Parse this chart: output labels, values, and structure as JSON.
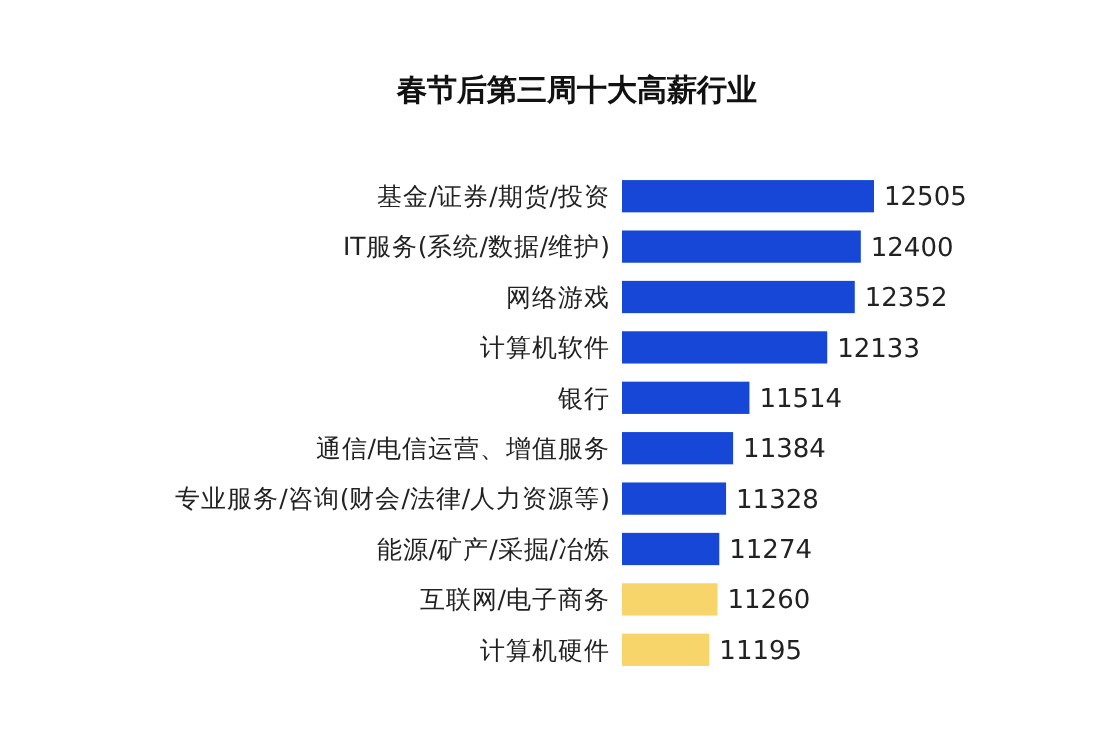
{
  "chart_data": {
    "type": "bar",
    "orientation": "horizontal",
    "title": "春节后第三周十大高薪行业",
    "categories": [
      "基金/证券/期货/投资",
      "IT服务(系统/数据/维护)",
      "网络游戏",
      "计算机软件",
      "银行",
      "通信/电信运营、增值服务",
      "专业服务/咨询(财会/法律/人力资源等)",
      "能源/矿产/采掘/冶炼",
      "互联网/电子商务",
      "计算机硬件"
    ],
    "values": [
      12505,
      12400,
      12352,
      12133,
      11514,
      11384,
      11328,
      11274,
      11260,
      11195
    ],
    "colors": [
      "#1747d6",
      "#1747d6",
      "#1747d6",
      "#1747d6",
      "#1747d6",
      "#1747d6",
      "#1747d6",
      "#1747d6",
      "#f7d56b",
      "#f7d56b"
    ],
    "xlim": [
      10500,
      12505
    ],
    "tick_labels": "y",
    "data_labels": true
  }
}
